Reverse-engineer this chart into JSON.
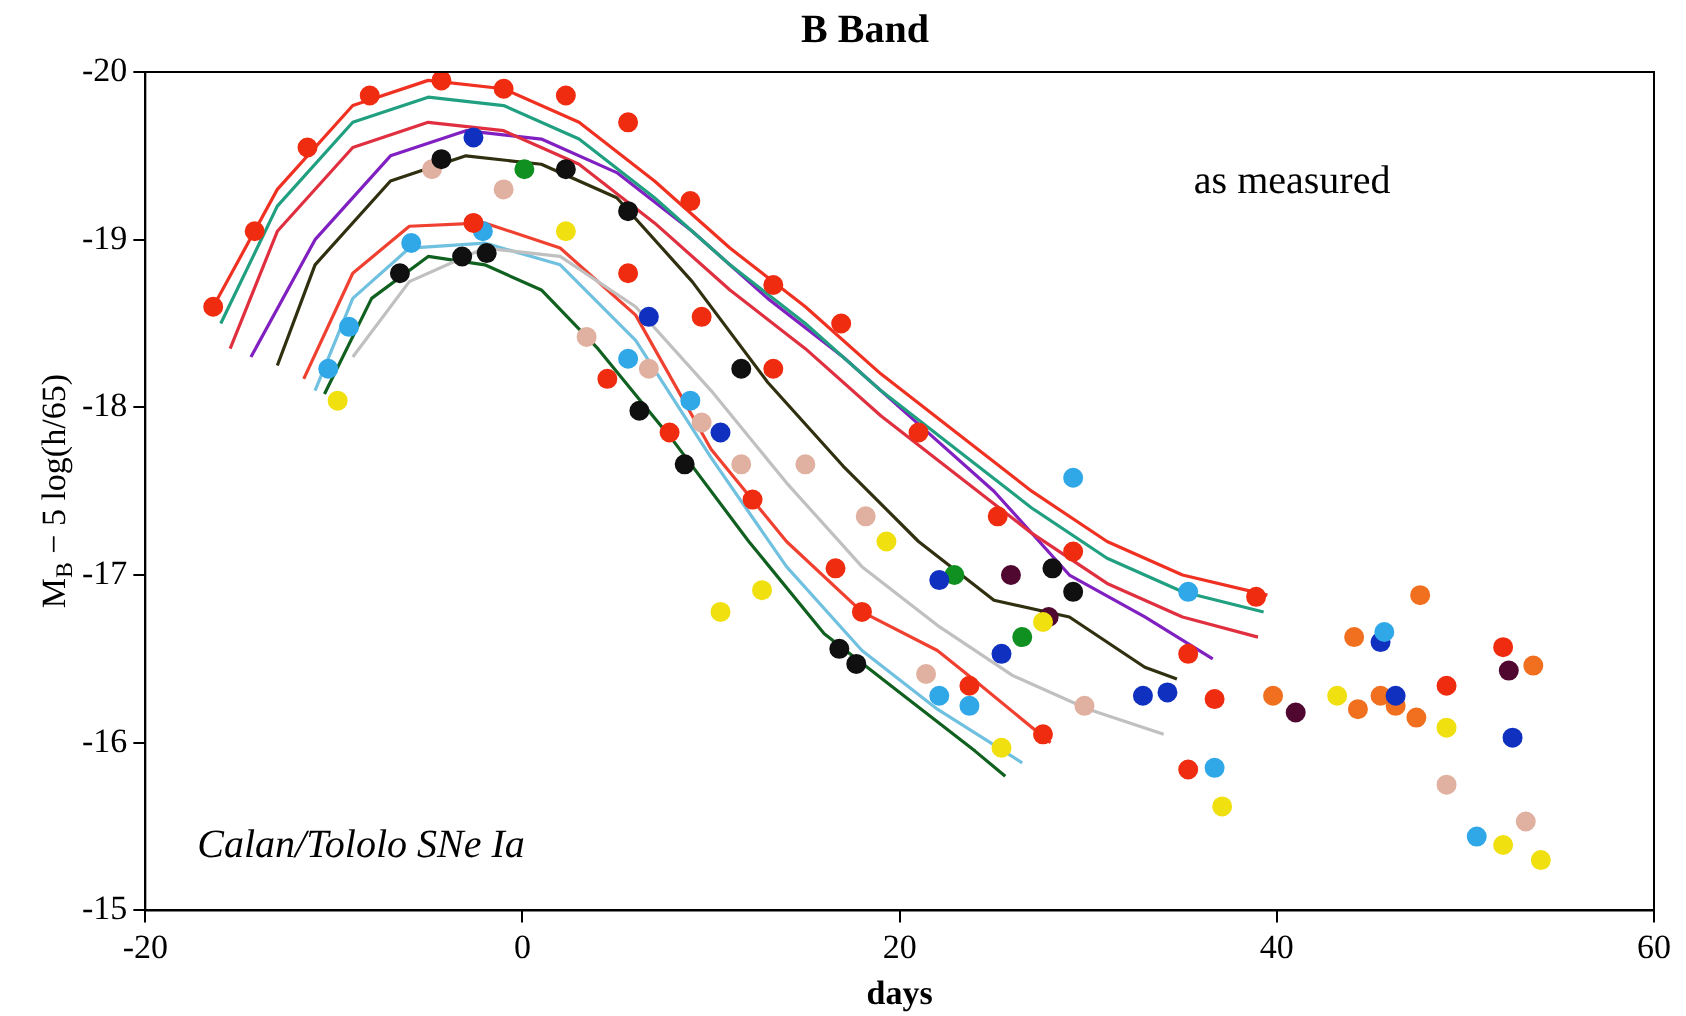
{
  "chart_data": {
    "type": "scatter",
    "title": "B Band",
    "xlabel": "days",
    "ylabel": "M$_{B}$ − 5 log(h/65)",
    "annotations": [
      "as measured",
      "Calan/Tololo SNe Ia"
    ],
    "xlim": [
      -20,
      60
    ],
    "xticks": [
      -20,
      0,
      20,
      40,
      60
    ],
    "ylim": [
      -15,
      -20
    ],
    "yticks": [
      -15,
      -16,
      -17,
      -18,
      -19,
      -20
    ],
    "grid": false,
    "legend": false,
    "marker": "circle",
    "series": [
      {
        "type": "line",
        "marker": "none",
        "color": "#f03020",
        "x": [
          -16.4,
          -13,
          -9,
          -5,
          -1,
          3,
          7,
          11,
          15,
          19,
          23,
          27,
          31,
          35,
          39.5
        ],
        "values": [
          -18.6,
          -19.3,
          -19.8,
          -19.95,
          -19.9,
          -19.7,
          -19.35,
          -18.95,
          -18.6,
          -18.2,
          -17.85,
          -17.5,
          -17.2,
          -17.0,
          -16.88
        ]
      },
      {
        "type": "line",
        "marker": "none",
        "color": "#20a080",
        "x": [
          -16,
          -13,
          -9,
          -5,
          -1,
          3,
          7,
          11,
          15,
          19,
          23,
          27,
          31,
          35,
          39.3
        ],
        "values": [
          -18.5,
          -19.2,
          -19.7,
          -19.85,
          -19.8,
          -19.6,
          -19.25,
          -18.85,
          -18.5,
          -18.1,
          -17.75,
          -17.4,
          -17.1,
          -16.9,
          -16.78
        ]
      },
      {
        "type": "line",
        "marker": "none",
        "color": "#e03040",
        "x": [
          -15.5,
          -13,
          -9,
          -5,
          -1,
          3,
          7,
          11,
          15,
          19,
          23,
          27,
          31,
          35,
          39
        ],
        "values": [
          -18.35,
          -19.05,
          -19.55,
          -19.7,
          -19.65,
          -19.45,
          -19.1,
          -18.7,
          -18.35,
          -17.95,
          -17.6,
          -17.25,
          -16.95,
          -16.75,
          -16.63
        ]
      },
      {
        "type": "line",
        "marker": "none",
        "color": "#8020c0",
        "x": [
          -14.4,
          -11,
          -7,
          -3,
          1,
          5,
          9,
          13,
          17,
          21,
          25,
          29,
          33,
          36.6
        ],
        "values": [
          -18.3,
          -19.0,
          -19.5,
          -19.65,
          -19.6,
          -19.4,
          -19.05,
          -18.65,
          -18.3,
          -17.9,
          -17.5,
          -17.0,
          -16.75,
          -16.5
        ]
      },
      {
        "type": "line",
        "marker": "none",
        "color": "#303010",
        "x": [
          -13,
          -11,
          -7,
          -3,
          1,
          5,
          9,
          13,
          17,
          21,
          25,
          29,
          33,
          34.7
        ],
        "values": [
          -18.25,
          -18.85,
          -19.35,
          -19.5,
          -19.45,
          -19.25,
          -18.75,
          -18.15,
          -17.65,
          -17.2,
          -16.85,
          -16.75,
          -16.45,
          -16.38
        ]
      },
      {
        "type": "line",
        "marker": "none",
        "color": "#c0c0c0",
        "x": [
          -9,
          -6,
          -2,
          2,
          6,
          10,
          14,
          18,
          22,
          26,
          30,
          34
        ],
        "values": [
          -18.3,
          -18.75,
          -18.95,
          -18.9,
          -18.6,
          -18.1,
          -17.55,
          -17.05,
          -16.7,
          -16.4,
          -16.2,
          -16.05
        ]
      },
      {
        "type": "line",
        "marker": "none",
        "color": "#f04030",
        "x": [
          -11.6,
          -9,
          -6,
          -2,
          2,
          6,
          10,
          14,
          18,
          22,
          24,
          28
        ],
        "values": [
          -18.17,
          -18.8,
          -19.08,
          -19.1,
          -18.95,
          -18.55,
          -17.75,
          -17.2,
          -16.78,
          -16.55,
          -16.37,
          -16.0
        ]
      },
      {
        "type": "line",
        "marker": "none",
        "color": "#70c0e0",
        "x": [
          -11,
          -9,
          -6,
          -2,
          2,
          6,
          10,
          14,
          18,
          22,
          26.5
        ],
        "values": [
          -18.1,
          -18.65,
          -18.95,
          -18.98,
          -18.85,
          -18.4,
          -17.7,
          -17.05,
          -16.55,
          -16.2,
          -15.88
        ]
      },
      {
        "type": "line",
        "marker": "none",
        "color": "#106020",
        "x": [
          -10.5,
          -8,
          -5,
          -2,
          1,
          4,
          8,
          12,
          16,
          20,
          24,
          25.6
        ],
        "values": [
          -18.08,
          -18.65,
          -18.9,
          -18.85,
          -18.7,
          -18.35,
          -17.8,
          -17.2,
          -16.65,
          -16.3,
          -15.95,
          -15.8
        ]
      },
      {
        "color": "#f02c10",
        "x": [
          -16.4,
          -14.2,
          -11.4,
          -8.1,
          -4.3,
          -1.0,
          2.3,
          5.6,
          8.9,
          13.3,
          16.9,
          21,
          25.2,
          29.2,
          38.9,
          -2.6,
          4.5,
          7.8,
          12.2,
          16.6,
          18,
          23.7,
          27.6,
          35.3,
          35.3,
          36.7,
          49,
          52,
          5.6,
          9.5,
          13.3
        ],
        "values": [
          -18.6,
          -19.05,
          -19.55,
          -19.86,
          -19.95,
          -19.9,
          -19.86,
          -19.7,
          -19.23,
          -18.73,
          -18.5,
          -17.85,
          -17.35,
          -17.14,
          -16.87,
          -19.1,
          -18.17,
          -17.85,
          -17.45,
          -17.04,
          -16.78,
          -16.34,
          -16.05,
          -15.84,
          -16.53,
          -16.26,
          -16.34,
          -16.57,
          -18.8,
          -18.54,
          -18.23
        ]
      },
      {
        "color": "#30a8e8",
        "x": [
          -10.3,
          -9.2,
          -5.9,
          -2.1,
          5.6,
          8.9,
          22.1,
          23.7,
          36.7,
          45.7,
          50.6,
          29.2,
          35.3
        ],
        "values": [
          -18.23,
          -18.48,
          -18.98,
          -19.05,
          -18.29,
          -18.04,
          -16.28,
          -16.22,
          -15.85,
          -16.66,
          -15.44,
          -17.58,
          -16.9
        ]
      },
      {
        "color": "#101010",
        "x": [
          -6.5,
          -3.2,
          -1.9,
          6.2,
          8.6,
          16.8,
          17.7,
          -4.3,
          2.3,
          5.6,
          11.6,
          28.1,
          29.2
        ],
        "values": [
          -18.8,
          -18.9,
          -18.92,
          -17.98,
          -17.66,
          -16.56,
          -16.47,
          -19.48,
          -19.42,
          -19.17,
          -18.23,
          -17.04,
          -16.9
        ]
      },
      {
        "color": "#f0e010",
        "x": [
          -9.8,
          2.3,
          10.5,
          12.7,
          25.4,
          19.3,
          27.6,
          37.1,
          43.2,
          49,
          52,
          54
        ],
        "values": [
          -18.04,
          -19.05,
          -16.78,
          -16.91,
          -15.97,
          -17.2,
          -16.72,
          -15.62,
          -16.28,
          -16.09,
          -15.39,
          -15.3
        ]
      },
      {
        "color": "#e0b0a0",
        "x": [
          -4.8,
          -1,
          3.4,
          6.7,
          9.5,
          11.6,
          15,
          18.2,
          21.4,
          29.8,
          49,
          53.2
        ],
        "values": [
          -19.42,
          -19.3,
          -18.42,
          -18.23,
          -17.91,
          -17.66,
          -17.66,
          -17.35,
          -16.41,
          -16.22,
          -15.75,
          -15.53
        ]
      },
      {
        "color": "#1030c0",
        "x": [
          -2.6,
          6.7,
          10.5,
          22.1,
          25.4,
          32.9,
          34.2,
          45.5,
          52.5,
          46.3
        ],
        "values": [
          -19.61,
          -18.54,
          -17.85,
          -16.97,
          -16.53,
          -16.28,
          -16.3,
          -16.6,
          -16.03,
          -16.28
        ]
      },
      {
        "color": "#109020",
        "x": [
          0.1,
          22.9,
          26.5
        ],
        "values": [
          -19.42,
          -17.0,
          -16.63
        ]
      },
      {
        "color": "#f07020",
        "x": [
          47.6,
          39.8,
          45.5,
          46.3,
          47.4,
          44.3,
          53.6,
          44.1
        ],
        "values": [
          -16.88,
          -16.28,
          -16.28,
          -16.22,
          -16.15,
          -16.2,
          -16.46,
          -16.63
        ]
      },
      {
        "color": "#500830",
        "x": [
          41,
          52.3,
          25.9,
          27.9
        ],
        "values": [
          -16.18,
          -16.43,
          -17.0,
          -16.75
        ]
      }
    ]
  }
}
